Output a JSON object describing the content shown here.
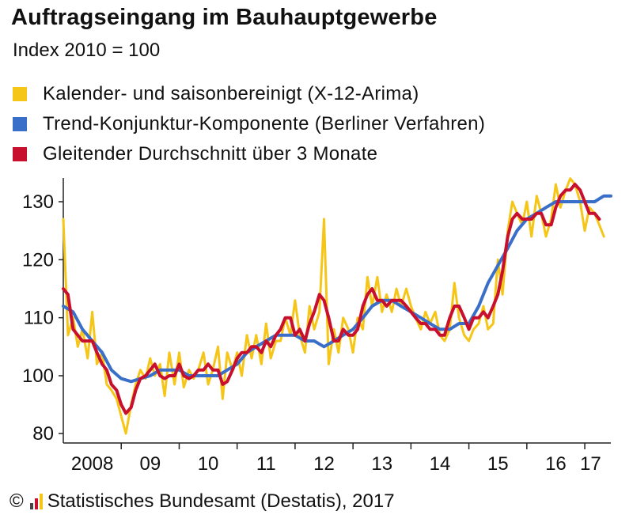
{
  "header": {
    "title": "Auftragseingang im Bauhauptgewerbe",
    "subtitle": "Index 2010 = 100"
  },
  "legend": [
    {
      "label": "Kalender- und saisonbereinigt (X-12-Arima)",
      "color": "#f5c518"
    },
    {
      "label": "Trend-Konjunktur-Komponente (Berliner Verfahren)",
      "color": "#3a6fc9"
    },
    {
      "label": "Gleitender Durchschnitt über 3 Monate",
      "color": "#c8102e"
    }
  ],
  "footer": {
    "copyright_symbol": "©",
    "source": "Statistisches Bundesamt (Destatis), 2017",
    "logo_icon": "destatis-logo-icon"
  },
  "chart_data": {
    "type": "line",
    "title": "Auftragseingang im Bauhauptgewerbe",
    "subtitle": "Index 2010 = 100",
    "x_unit": "year (decimal, monthly data Jan 2008 – May 2017)",
    "xlim": [
      2008.0,
      2017.45
    ],
    "ylim": [
      80,
      133
    ],
    "y_axis_break": true,
    "y_ticks": [
      80,
      100,
      110,
      120,
      130
    ],
    "x_ticks": [
      {
        "label": "2008",
        "value": 2008.5
      },
      {
        "label": "09",
        "value": 2009.5
      },
      {
        "label": "10",
        "value": 2010.5
      },
      {
        "label": "11",
        "value": 2011.5
      },
      {
        "label": "12",
        "value": 2012.5
      },
      {
        "label": "13",
        "value": 2013.5
      },
      {
        "label": "14",
        "value": 2014.5
      },
      {
        "label": "15",
        "value": 2015.5
      },
      {
        "label": "16",
        "value": 2016.5
      },
      {
        "label": "17",
        "value": 2017.1
      }
    ],
    "grid": false,
    "legend_position": "top-left",
    "series": [
      {
        "name": "Kalender- und saisonbereinigt (X-12-Arima)",
        "color": "#f5c518",
        "width": 3,
        "points": [
          [
            2008.0,
            127
          ],
          [
            2008.08,
            107
          ],
          [
            2008.17,
            110
          ],
          [
            2008.25,
            105
          ],
          [
            2008.33,
            108
          ],
          [
            2008.42,
            103
          ],
          [
            2008.5,
            111
          ],
          [
            2008.58,
            102
          ],
          [
            2008.67,
            104
          ],
          [
            2008.75,
            97
          ],
          [
            2008.83,
            95
          ],
          [
            2008.92,
            92
          ],
          [
            2009.0,
            86
          ],
          [
            2009.08,
            80
          ],
          [
            2009.17,
            90
          ],
          [
            2009.25,
            97
          ],
          [
            2009.33,
            101
          ],
          [
            2009.42,
            99
          ],
          [
            2009.5,
            103
          ],
          [
            2009.58,
            100
          ],
          [
            2009.67,
            102
          ],
          [
            2009.75,
            93
          ],
          [
            2009.83,
            104
          ],
          [
            2009.92,
            97
          ],
          [
            2010.0,
            104
          ],
          [
            2010.08,
            96
          ],
          [
            2010.17,
            101
          ],
          [
            2010.25,
            99
          ],
          [
            2010.33,
            101
          ],
          [
            2010.42,
            104
          ],
          [
            2010.5,
            97
          ],
          [
            2010.58,
            101
          ],
          [
            2010.67,
            105
          ],
          [
            2010.75,
            92
          ],
          [
            2010.83,
            104
          ],
          [
            2010.92,
            101
          ],
          [
            2011.0,
            104
          ],
          [
            2011.08,
            100
          ],
          [
            2011.17,
            107
          ],
          [
            2011.25,
            103
          ],
          [
            2011.33,
            107
          ],
          [
            2011.42,
            102
          ],
          [
            2011.5,
            109
          ],
          [
            2011.58,
            103
          ],
          [
            2011.67,
            106
          ],
          [
            2011.75,
            106
          ],
          [
            2011.83,
            110
          ],
          [
            2011.92,
            107
          ],
          [
            2012.0,
            113
          ],
          [
            2012.08,
            107
          ],
          [
            2012.17,
            104
          ],
          [
            2012.25,
            112
          ],
          [
            2012.33,
            108
          ],
          [
            2012.42,
            111
          ],
          [
            2012.5,
            127
          ],
          [
            2012.58,
            102
          ],
          [
            2012.67,
            108
          ],
          [
            2012.75,
            104
          ],
          [
            2012.83,
            110
          ],
          [
            2012.92,
            108
          ],
          [
            2013.0,
            104
          ],
          [
            2013.08,
            110
          ],
          [
            2013.17,
            108
          ],
          [
            2013.25,
            117
          ],
          [
            2013.33,
            112
          ],
          [
            2013.42,
            117
          ],
          [
            2013.5,
            111
          ],
          [
            2013.58,
            114
          ],
          [
            2013.67,
            111
          ],
          [
            2013.75,
            115
          ],
          [
            2013.83,
            112
          ],
          [
            2013.92,
            115
          ],
          [
            2014.0,
            112
          ],
          [
            2014.08,
            110
          ],
          [
            2014.17,
            108
          ],
          [
            2014.25,
            111
          ],
          [
            2014.33,
            109
          ],
          [
            2014.42,
            111
          ],
          [
            2014.5,
            107
          ],
          [
            2014.58,
            106
          ],
          [
            2014.67,
            108
          ],
          [
            2014.75,
            116
          ],
          [
            2014.83,
            110
          ],
          [
            2014.92,
            107
          ],
          [
            2015.0,
            106
          ],
          [
            2015.08,
            108
          ],
          [
            2015.17,
            109
          ],
          [
            2015.25,
            112
          ],
          [
            2015.33,
            108
          ],
          [
            2015.42,
            109
          ],
          [
            2015.5,
            120
          ],
          [
            2015.58,
            114
          ],
          [
            2015.67,
            125
          ],
          [
            2015.75,
            130
          ],
          [
            2015.83,
            128
          ],
          [
            2015.92,
            126
          ],
          [
            2016.0,
            130
          ],
          [
            2016.08,
            124
          ],
          [
            2016.17,
            131
          ],
          [
            2016.25,
            128
          ],
          [
            2016.33,
            124
          ],
          [
            2016.42,
            127
          ],
          [
            2016.5,
            133
          ],
          [
            2016.58,
            129
          ],
          [
            2016.67,
            132
          ],
          [
            2016.75,
            134
          ],
          [
            2016.83,
            133
          ],
          [
            2016.92,
            130
          ],
          [
            2017.0,
            125
          ],
          [
            2017.08,
            129
          ],
          [
            2017.17,
            128
          ],
          [
            2017.25,
            126
          ],
          [
            2017.33,
            124
          ]
        ]
      },
      {
        "name": "Trend-Konjunktur-Komponente (Berliner Verfahren)",
        "color": "#3a6fc9",
        "width": 4,
        "points": [
          [
            2008.0,
            112
          ],
          [
            2008.17,
            111
          ],
          [
            2008.33,
            108
          ],
          [
            2008.5,
            106
          ],
          [
            2008.67,
            104
          ],
          [
            2008.83,
            101
          ],
          [
            2009.0,
            99
          ],
          [
            2009.17,
            98
          ],
          [
            2009.33,
            99
          ],
          [
            2009.5,
            100
          ],
          [
            2009.67,
            101
          ],
          [
            2009.83,
            101
          ],
          [
            2010.0,
            101
          ],
          [
            2010.17,
            100
          ],
          [
            2010.33,
            100
          ],
          [
            2010.5,
            100
          ],
          [
            2010.67,
            100
          ],
          [
            2010.83,
            101
          ],
          [
            2011.0,
            102
          ],
          [
            2011.17,
            104
          ],
          [
            2011.33,
            105
          ],
          [
            2011.5,
            106
          ],
          [
            2011.67,
            107
          ],
          [
            2011.83,
            107
          ],
          [
            2012.0,
            107
          ],
          [
            2012.17,
            106
          ],
          [
            2012.33,
            106
          ],
          [
            2012.5,
            105
          ],
          [
            2012.67,
            106
          ],
          [
            2012.83,
            107
          ],
          [
            2013.0,
            108
          ],
          [
            2013.17,
            110
          ],
          [
            2013.33,
            112
          ],
          [
            2013.5,
            113
          ],
          [
            2013.67,
            113
          ],
          [
            2013.83,
            112
          ],
          [
            2014.0,
            111
          ],
          [
            2014.17,
            110
          ],
          [
            2014.33,
            109
          ],
          [
            2014.5,
            108
          ],
          [
            2014.67,
            108
          ],
          [
            2014.83,
            109
          ],
          [
            2015.0,
            109
          ],
          [
            2015.17,
            112
          ],
          [
            2015.33,
            116
          ],
          [
            2015.5,
            119
          ],
          [
            2015.67,
            122
          ],
          [
            2015.83,
            125
          ],
          [
            2016.0,
            127
          ],
          [
            2016.17,
            128
          ],
          [
            2016.33,
            129
          ],
          [
            2016.5,
            130
          ],
          [
            2016.67,
            130
          ],
          [
            2016.83,
            130
          ],
          [
            2017.0,
            130
          ],
          [
            2017.17,
            130
          ],
          [
            2017.33,
            131
          ],
          [
            2017.45,
            131
          ]
        ]
      },
      {
        "name": "Gleitender Durchschnitt über 3 Monate",
        "color": "#c8102e",
        "width": 4,
        "points": [
          [
            2008.0,
            115
          ],
          [
            2008.08,
            114
          ],
          [
            2008.17,
            108
          ],
          [
            2008.25,
            107
          ],
          [
            2008.33,
            106
          ],
          [
            2008.42,
            106
          ],
          [
            2008.5,
            106
          ],
          [
            2008.58,
            104
          ],
          [
            2008.67,
            102
          ],
          [
            2008.75,
            101
          ],
          [
            2008.83,
            97
          ],
          [
            2008.92,
            95
          ],
          [
            2009.0,
            90
          ],
          [
            2009.08,
            87
          ],
          [
            2009.17,
            89
          ],
          [
            2009.25,
            95
          ],
          [
            2009.33,
            99
          ],
          [
            2009.42,
            100
          ],
          [
            2009.5,
            101
          ],
          [
            2009.58,
            102
          ],
          [
            2009.67,
            100
          ],
          [
            2009.75,
            99
          ],
          [
            2009.83,
            100
          ],
          [
            2009.92,
            100
          ],
          [
            2010.0,
            102
          ],
          [
            2010.08,
            100
          ],
          [
            2010.17,
            99
          ],
          [
            2010.25,
            100
          ],
          [
            2010.33,
            101
          ],
          [
            2010.42,
            101
          ],
          [
            2010.5,
            102
          ],
          [
            2010.58,
            101
          ],
          [
            2010.67,
            101
          ],
          [
            2010.75,
            97
          ],
          [
            2010.83,
            98
          ],
          [
            2010.92,
            101
          ],
          [
            2011.0,
            103
          ],
          [
            2011.08,
            104
          ],
          [
            2011.17,
            104
          ],
          [
            2011.25,
            105
          ],
          [
            2011.33,
            105
          ],
          [
            2011.42,
            104
          ],
          [
            2011.5,
            106
          ],
          [
            2011.58,
            105
          ],
          [
            2011.67,
            107
          ],
          [
            2011.75,
            108
          ],
          [
            2011.83,
            110
          ],
          [
            2011.92,
            110
          ],
          [
            2012.0,
            107
          ],
          [
            2012.08,
            108
          ],
          [
            2012.17,
            106
          ],
          [
            2012.25,
            109
          ],
          [
            2012.33,
            111
          ],
          [
            2012.42,
            114
          ],
          [
            2012.5,
            113
          ],
          [
            2012.58,
            110
          ],
          [
            2012.67,
            106
          ],
          [
            2012.75,
            106
          ],
          [
            2012.83,
            108
          ],
          [
            2012.92,
            107
          ],
          [
            2013.0,
            107
          ],
          [
            2013.08,
            108
          ],
          [
            2013.17,
            112
          ],
          [
            2013.25,
            114
          ],
          [
            2013.33,
            115
          ],
          [
            2013.42,
            113
          ],
          [
            2013.5,
            113
          ],
          [
            2013.58,
            112
          ],
          [
            2013.67,
            113
          ],
          [
            2013.75,
            113
          ],
          [
            2013.83,
            113
          ],
          [
            2013.92,
            112
          ],
          [
            2014.0,
            111
          ],
          [
            2014.08,
            110
          ],
          [
            2014.17,
            109
          ],
          [
            2014.25,
            109
          ],
          [
            2014.33,
            108
          ],
          [
            2014.42,
            108
          ],
          [
            2014.5,
            107
          ],
          [
            2014.58,
            107
          ],
          [
            2014.67,
            110
          ],
          [
            2014.75,
            112
          ],
          [
            2014.83,
            112
          ],
          [
            2014.92,
            110
          ],
          [
            2015.0,
            108
          ],
          [
            2015.08,
            110
          ],
          [
            2015.17,
            110
          ],
          [
            2015.25,
            111
          ],
          [
            2015.33,
            110
          ],
          [
            2015.42,
            112
          ],
          [
            2015.5,
            114
          ],
          [
            2015.58,
            118
          ],
          [
            2015.67,
            124
          ],
          [
            2015.75,
            127
          ],
          [
            2015.83,
            128
          ],
          [
            2015.92,
            127
          ],
          [
            2016.0,
            127
          ],
          [
            2016.08,
            127
          ],
          [
            2016.17,
            128
          ],
          [
            2016.25,
            128
          ],
          [
            2016.33,
            126
          ],
          [
            2016.42,
            126
          ],
          [
            2016.5,
            129
          ],
          [
            2016.58,
            131
          ],
          [
            2016.67,
            132
          ],
          [
            2016.75,
            132
          ],
          [
            2016.83,
            133
          ],
          [
            2016.92,
            132
          ],
          [
            2017.0,
            130
          ],
          [
            2017.08,
            128
          ],
          [
            2017.17,
            128
          ],
          [
            2017.25,
            127
          ]
        ]
      }
    ]
  }
}
